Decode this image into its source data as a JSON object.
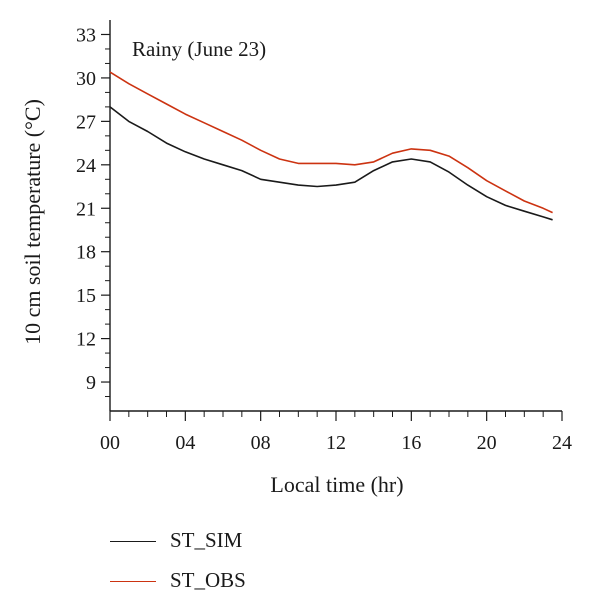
{
  "chart_data": {
    "type": "line",
    "annotation": "Rainy (June 23)",
    "xlabel": "Local time (hr)",
    "ylabel": "10 cm soil temperature (°C)",
    "xlim": [
      0,
      24
    ],
    "ylim": [
      7,
      34
    ],
    "x_ticks": [
      0,
      4,
      8,
      12,
      16,
      20,
      24
    ],
    "x_tick_labels": [
      "00",
      "04",
      "08",
      "12",
      "16",
      "20",
      "24"
    ],
    "y_ticks": [
      9,
      12,
      15,
      18,
      21,
      24,
      27,
      30,
      33
    ],
    "y_tick_labels": [
      "9",
      "12",
      "15",
      "18",
      "21",
      "24",
      "27",
      "30",
      "33"
    ],
    "grid": false,
    "legend_position": "bottom-left",
    "x": [
      0,
      1,
      2,
      3,
      4,
      5,
      6,
      7,
      8,
      9,
      10,
      11,
      12,
      13,
      14,
      15,
      16,
      17,
      18,
      19,
      20,
      21,
      22,
      23,
      23.5
    ],
    "series": [
      {
        "name": "ST_SIM",
        "color": "#1a1a1a",
        "values": [
          28.0,
          27.0,
          26.3,
          25.5,
          24.9,
          24.4,
          24.0,
          23.6,
          23.0,
          22.8,
          22.6,
          22.5,
          22.6,
          22.8,
          23.6,
          24.2,
          24.4,
          24.2,
          23.5,
          22.6,
          21.8,
          21.2,
          20.8,
          20.4,
          20.2
        ]
      },
      {
        "name": "ST_OBS",
        "color": "#cc3311",
        "values": [
          30.4,
          29.6,
          28.9,
          28.2,
          27.5,
          26.9,
          26.3,
          25.7,
          25.0,
          24.4,
          24.1,
          24.1,
          24.1,
          24.0,
          24.2,
          24.8,
          25.1,
          25.0,
          24.6,
          23.8,
          22.9,
          22.2,
          21.5,
          21.0,
          20.7
        ]
      }
    ]
  }
}
